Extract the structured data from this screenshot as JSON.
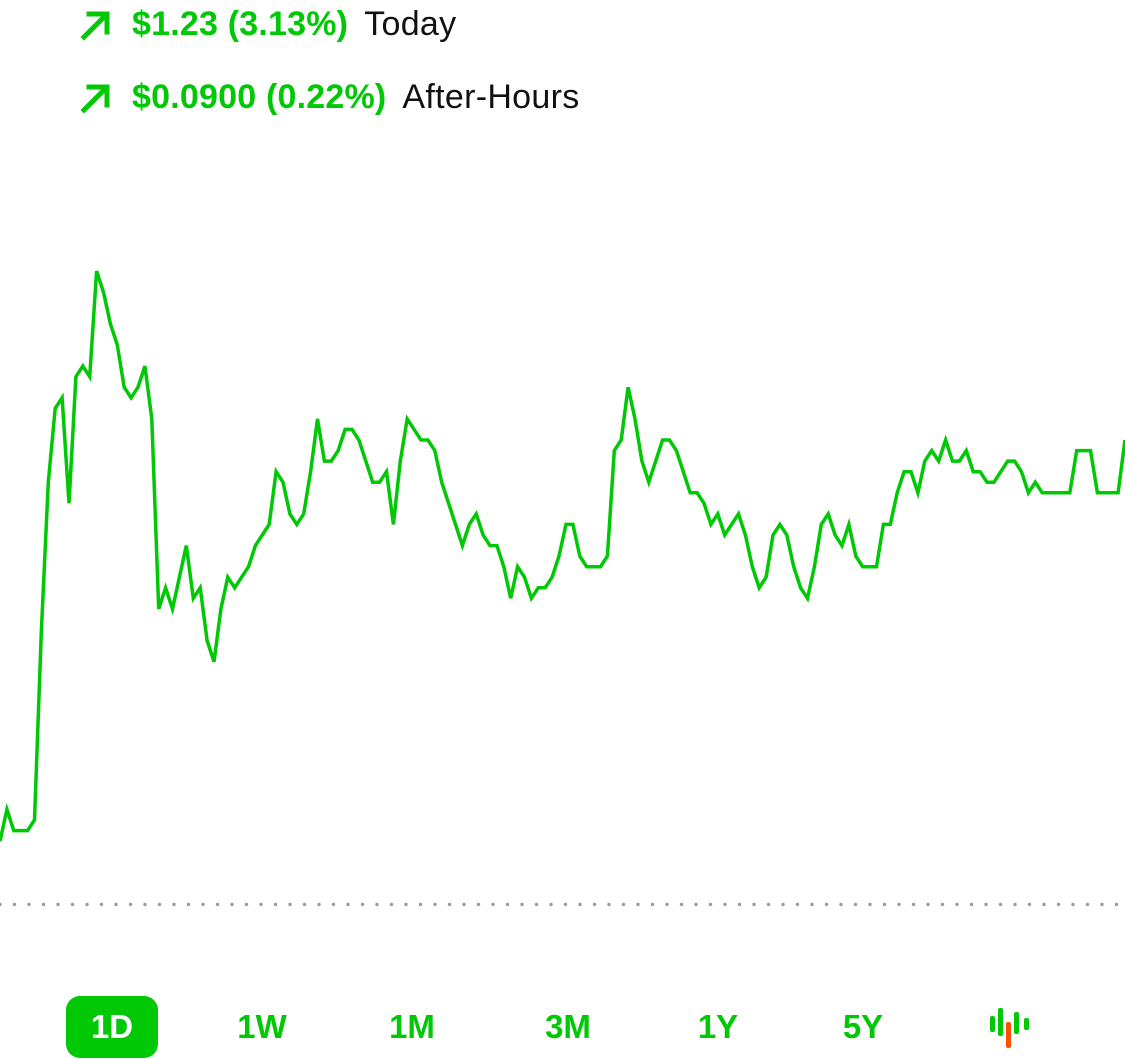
{
  "colors": {
    "accent": "#00c805",
    "down": "#ff5000",
    "baseline_dots": "#9a9a9a",
    "label_text": "#111111"
  },
  "changes": {
    "today": {
      "icon": "arrow-up-right-icon",
      "value": "$1.23 (3.13%)",
      "label": "Today"
    },
    "after_hours": {
      "icon": "arrow-up-right-icon",
      "value": "$0.0900 (0.22%)",
      "label": "After-Hours"
    }
  },
  "range_selector": {
    "options": [
      "1D",
      "1W",
      "1M",
      "3M",
      "1Y",
      "5Y"
    ],
    "selected": "1D",
    "chart_type_toggle_icon": "candlestick-chart-icon"
  },
  "chart_data": {
    "type": "line",
    "title": "",
    "xlabel": "",
    "ylabel": "",
    "x": [
      0,
      1,
      2,
      3,
      4,
      5,
      6,
      7,
      8,
      9,
      10,
      11,
      12,
      13,
      14,
      15,
      16,
      17,
      18,
      19,
      20,
      21,
      22,
      23,
      24,
      25,
      26,
      27,
      28,
      29,
      30,
      31,
      32,
      33,
      34,
      35,
      36,
      37,
      38,
      39,
      40,
      41,
      42,
      43,
      44,
      45,
      46,
      47,
      48,
      49,
      50,
      51,
      52,
      53,
      54,
      55,
      56,
      57,
      58,
      59,
      60,
      61,
      62,
      63,
      64,
      65,
      66,
      67,
      68,
      69,
      70,
      71,
      72,
      73,
      74,
      75,
      76,
      77,
      78,
      79,
      80,
      81,
      82,
      83,
      84,
      85,
      86,
      87,
      88,
      89,
      90,
      91,
      92,
      93,
      94,
      95,
      96,
      97,
      98,
      99,
      100,
      101,
      102,
      103,
      104,
      105,
      106,
      107,
      108,
      109,
      110,
      111,
      112,
      113,
      114,
      115,
      116,
      117,
      118,
      119,
      120,
      121,
      122,
      123,
      124,
      125,
      126,
      127,
      128,
      129,
      130,
      131,
      132,
      133,
      134,
      135,
      136,
      137,
      138,
      139,
      140,
      141,
      142,
      143,
      144,
      145,
      146,
      147,
      148,
      149,
      150,
      151,
      152,
      153,
      154,
      155,
      156,
      157,
      158,
      159,
      160,
      161,
      162,
      163
    ],
    "y": [
      16,
      19,
      17,
      17,
      17,
      18,
      36,
      50,
      57,
      58,
      48,
      60,
      61,
      60,
      70,
      68,
      65,
      63,
      59,
      58,
      59,
      61,
      56,
      38,
      40,
      38,
      41,
      44,
      39,
      40,
      35,
      33,
      38,
      41,
      40,
      41,
      42,
      44,
      45,
      46,
      51,
      50,
      47,
      46,
      47,
      51,
      56,
      52,
      52,
      53,
      55,
      55,
      54,
      52,
      50,
      50,
      51,
      46,
      52,
      56,
      55,
      54,
      54,
      53,
      50,
      48,
      46,
      44,
      46,
      47,
      45,
      44,
      44,
      42,
      39,
      42,
      41,
      39,
      40,
      40,
      41,
      43,
      46,
      46,
      43,
      42,
      42,
      42,
      43,
      53,
      54,
      59,
      56,
      52,
      50,
      52,
      54,
      54,
      53,
      51,
      49,
      49,
      48,
      46,
      47,
      45,
      46,
      47,
      45,
      42,
      40,
      41,
      45,
      46,
      45,
      42,
      40,
      39,
      42,
      46,
      47,
      45,
      44,
      46,
      43,
      42,
      42,
      42,
      46,
      46,
      49,
      51,
      51,
      49,
      52,
      53,
      52,
      54,
      52,
      52,
      53,
      51,
      51,
      50,
      50,
      51,
      52,
      52,
      51,
      49,
      50,
      49,
      49,
      49,
      49,
      49,
      53,
      53,
      53,
      49,
      49,
      49,
      49,
      54
    ],
    "series": [],
    "baseline": 10,
    "ylim": [
      0,
      72
    ],
    "grid": false,
    "legend": "none"
  }
}
